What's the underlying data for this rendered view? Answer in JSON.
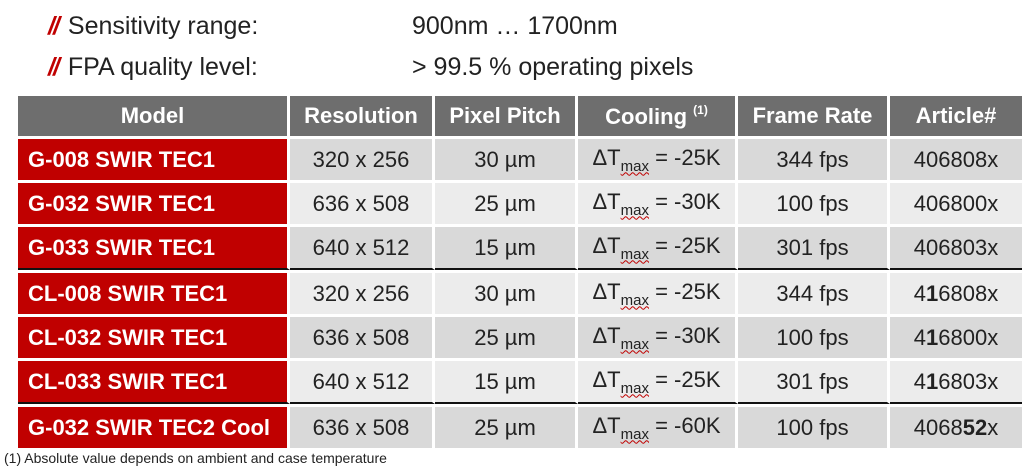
{
  "specs": [
    {
      "mark": "//",
      "label": "Sensitivity range:",
      "value": "900nm … 1700nm"
    },
    {
      "mark": "//",
      "label": "FPA quality level:",
      "value": "> 99.5 % operating pixels"
    }
  ],
  "table": {
    "headers": {
      "model": "Model",
      "resolution": "Resolution",
      "pitch": "Pixel Pitch",
      "cooling": "Cooling",
      "cooling_note": "(1)",
      "frame_rate": "Frame Rate",
      "article": "Article#"
    },
    "rows": [
      {
        "model": "G-008 SWIR TEC1",
        "resolution": "320 x 256",
        "pitch": "30 µm",
        "dt_symbol": "ΔT",
        "dt_sub": "max",
        "dt_value": " = -25K",
        "frame_rate": "344 fps",
        "article_pre": "40",
        "article_bold": "",
        "article_post": "6808x"
      },
      {
        "model": "G-032 SWIR TEC1",
        "resolution": "636 x 508",
        "pitch": "25 µm",
        "dt_symbol": "ΔT",
        "dt_sub": "max",
        "dt_value": " = -30K",
        "frame_rate": "100 fps",
        "article_pre": "40",
        "article_bold": "",
        "article_post": "6800x"
      },
      {
        "model": "G-033 SWIR TEC1",
        "resolution": "640 x 512",
        "pitch": "15 µm",
        "dt_symbol": "ΔT",
        "dt_sub": "max",
        "dt_value": " = -25K",
        "frame_rate": "301 fps",
        "article_pre": "40",
        "article_bold": "",
        "article_post": "6803x"
      },
      {
        "model": "CL-008 SWIR TEC1",
        "resolution": "320 x 256",
        "pitch": "30 µm",
        "dt_symbol": "ΔT",
        "dt_sub": "max",
        "dt_value": " = -25K",
        "frame_rate": "344 fps",
        "article_pre": "4",
        "article_bold": "1",
        "article_post": "6808x"
      },
      {
        "model": "CL-032 SWIR TEC1",
        "resolution": "636 x 508",
        "pitch": "25 µm",
        "dt_symbol": "ΔT",
        "dt_sub": "max",
        "dt_value": " = -30K",
        "frame_rate": "100 fps",
        "article_pre": "4",
        "article_bold": "1",
        "article_post": "6800x"
      },
      {
        "model": "CL-033 SWIR TEC1",
        "resolution": "640 x 512",
        "pitch": "15 µm",
        "dt_symbol": "ΔT",
        "dt_sub": "max",
        "dt_value": " = -25K",
        "frame_rate": "301 fps",
        "article_pre": "4",
        "article_bold": "1",
        "article_post": "6803x"
      },
      {
        "model": "G-032 SWIR TEC2 Cool",
        "resolution": "636 x 508",
        "pitch": "25 µm",
        "dt_symbol": "ΔT",
        "dt_sub": "max",
        "dt_value": " = -60K",
        "frame_rate": "100 fps",
        "article_pre": "4068",
        "article_bold": "52",
        "article_post": "x"
      }
    ]
  },
  "footnote": "(1)  Absolute value depends on ambient and case temperature",
  "colors": {
    "accent": "#c00000",
    "header_bg": "#6e6e6e",
    "row_dark": "#d9d9d9",
    "row_light": "#ececec"
  }
}
